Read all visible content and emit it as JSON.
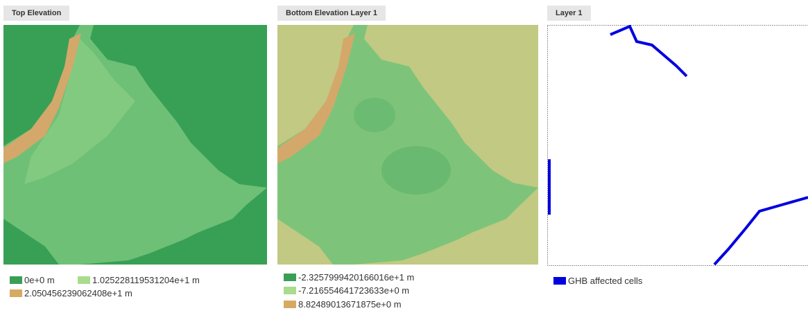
{
  "panels": [
    {
      "title": "Top Elevation",
      "legend": [
        {
          "label": "0e+0 m",
          "color": "#3a9e55"
        },
        {
          "label": "1.025228119531204e+1 m",
          "color": "#a9dc8c"
        },
        {
          "label": "2.050456239062408e+1 m",
          "color": "#d6aa62"
        }
      ]
    },
    {
      "title": "Bottom Elevation Layer 1",
      "legend": [
        {
          "label": "-2.3257999420166016e+1 m",
          "color": "#3a9e55"
        },
        {
          "label": "-7.216554641723633e+0 m",
          "color": "#a9dc8c"
        },
        {
          "label": "8.82489013671875e+0 m",
          "color": "#d6aa62"
        }
      ]
    },
    {
      "title": "Layer 1",
      "legend": [
        {
          "label": "GHB affected cells",
          "color": "#0000e0"
        }
      ]
    }
  ]
}
